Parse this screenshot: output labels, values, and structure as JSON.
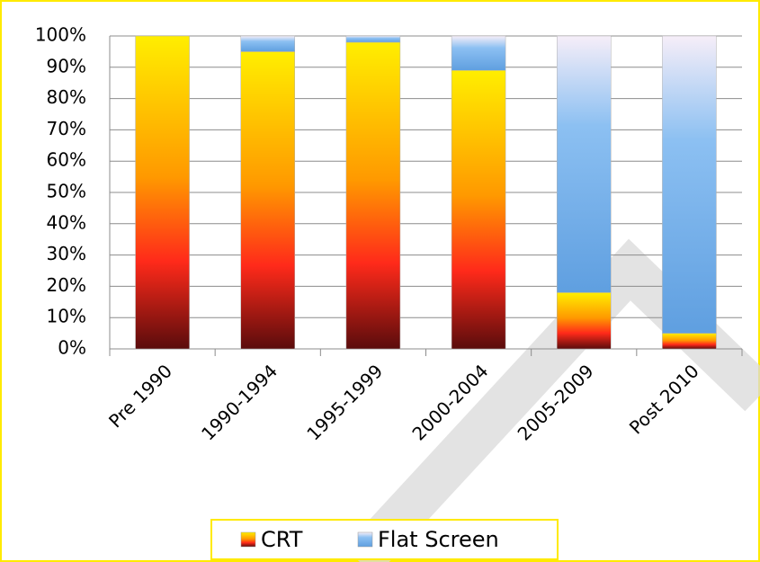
{
  "chart_data": {
    "type": "stacked-bar",
    "categories": [
      "Pre 1990",
      "1990-1994",
      "1995-1999",
      "2000-2004",
      "2005-2009",
      "Post 2010"
    ],
    "series": [
      {
        "name": "CRT",
        "color": "#ff2a1a",
        "values": [
          100,
          95,
          98,
          89,
          18,
          5
        ]
      },
      {
        "name": "Flat Screen",
        "color": "#8cc0f2",
        "values": [
          0,
          5,
          2,
          11,
          82,
          95
        ]
      }
    ],
    "ylim": [
      0,
      100
    ],
    "yticks": [
      {
        "value": 0,
        "label": "0%"
      },
      {
        "value": 10,
        "label": "10%"
      },
      {
        "value": 20,
        "label": "20%"
      },
      {
        "value": 30,
        "label": "30%"
      },
      {
        "value": 40,
        "label": "40%"
      },
      {
        "value": 50,
        "label": "50%"
      },
      {
        "value": 60,
        "label": "60%"
      },
      {
        "value": 70,
        "label": "70%"
      },
      {
        "value": 80,
        "label": "80%"
      },
      {
        "value": 90,
        "label": "90%"
      },
      {
        "value": 100,
        "label": "100%"
      }
    ],
    "grid": true,
    "legend": "bottom"
  }
}
